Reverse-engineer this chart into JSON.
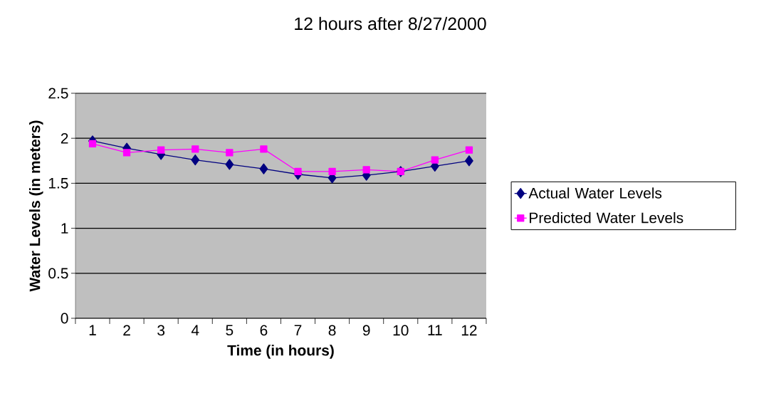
{
  "chart_data": {
    "type": "line",
    "title": "12 hours after 8/27/2000",
    "xlabel": "Time (in hours)",
    "ylabel": "Water Levels (in meters)",
    "categories": [
      "1",
      "2",
      "3",
      "4",
      "5",
      "6",
      "7",
      "8",
      "9",
      "10",
      "11",
      "12"
    ],
    "series": [
      {
        "name": "Actual Water Levels",
        "color": "#000080",
        "marker": "diamond",
        "values": [
          1.97,
          1.89,
          1.82,
          1.76,
          1.71,
          1.66,
          1.6,
          1.56,
          1.59,
          1.63,
          1.69,
          1.75
        ]
      },
      {
        "name": "Predicted Water Levels",
        "color": "#ff00ff",
        "marker": "square",
        "values": [
          1.94,
          1.84,
          1.87,
          1.88,
          1.84,
          1.88,
          1.63,
          1.63,
          1.65,
          1.63,
          1.76,
          1.87
        ]
      }
    ],
    "ylim": [
      0,
      2.5
    ],
    "yticks": [
      0,
      0.5,
      1,
      1.5,
      2,
      2.5
    ],
    "grid": "y",
    "legend": "right",
    "line_style": "solid"
  }
}
